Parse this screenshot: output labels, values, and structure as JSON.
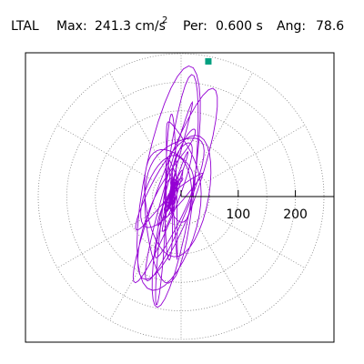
{
  "header": {
    "station": "LTAL",
    "max_label": "Max:",
    "max_value": "241.3 cm/s",
    "max_exp": "2",
    "per_label": "Per:",
    "per_value": "0.600 s",
    "ang_label": "Ang:",
    "ang_value": "78.6"
  },
  "colors": {
    "trace": "#9400d3",
    "marker": "#00a080",
    "axis": "#000000",
    "grid": "#808080",
    "frame": "#000000"
  },
  "chart_data": {
    "type": "polar-orbit",
    "title": "",
    "radial_ticks": [
      100,
      200
    ],
    "radial_tick_labels": [
      "100",
      "200"
    ],
    "rings": [
      50,
      100,
      150,
      200,
      250
    ],
    "spoke_angles_deg": [
      30,
      60,
      90,
      120,
      150,
      210,
      240,
      270,
      300,
      330
    ],
    "r_max": 260,
    "peak": {
      "magnitude": 241.3,
      "angle_deg": 78.6
    },
    "grid": true
  }
}
